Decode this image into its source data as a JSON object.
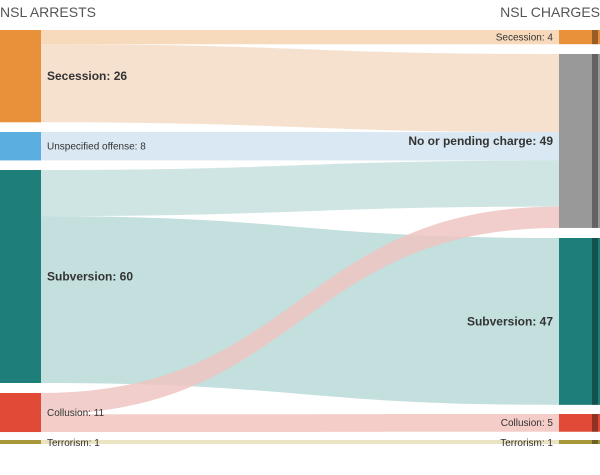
{
  "chart_data": {
    "type": "sankey",
    "header_left": "NSL ARRESTS",
    "header_right": "NSL CHARGES",
    "nodes_left": [
      {
        "id": "secession_a",
        "label": "Secession: 26",
        "value": 26,
        "color": "#e8903a"
      },
      {
        "id": "unspecified_a",
        "label": "Unspecified offense: 8",
        "value": 8,
        "color": "#5aaee0"
      },
      {
        "id": "subversion_a",
        "label": "Subversion: 60",
        "value": 60,
        "color": "#1e7f7a"
      },
      {
        "id": "collusion_a",
        "label": "Collusion: 11",
        "value": 11,
        "color": "#e04a36"
      },
      {
        "id": "terrorism_a",
        "label": "Terrorism: 1",
        "value": 1,
        "color": "#a8973a"
      }
    ],
    "nodes_right": [
      {
        "id": "secession_c",
        "label": "Secession: 4",
        "value": 4,
        "color": "#e8903a"
      },
      {
        "id": "none_c",
        "label": "No or pending charge: 49",
        "value": 49,
        "color": "#999999"
      },
      {
        "id": "subversion_c",
        "label": "Subversion: 47",
        "value": 47,
        "color": "#1e7f7a"
      },
      {
        "id": "collusion_c",
        "label": "Collusion: 5",
        "value": 5,
        "color": "#e04a36"
      },
      {
        "id": "terrorism_c",
        "label": "Terrorism: 1",
        "value": 1,
        "color": "#a8973a"
      }
    ],
    "links": [
      {
        "source": "secession_a",
        "target": "secession_c",
        "value": 4,
        "color": "#f6d3b0"
      },
      {
        "source": "secession_a",
        "target": "none_c",
        "value": 22,
        "color": "#f4dcc6"
      },
      {
        "source": "unspecified_a",
        "target": "none_c",
        "value": 8,
        "color": "#d2e4f0"
      },
      {
        "source": "subversion_a",
        "target": "none_c",
        "value": 13,
        "color": "#c5e0de"
      },
      {
        "source": "subversion_a",
        "target": "subversion_c",
        "value": 47,
        "color": "#b8d9d8"
      },
      {
        "source": "collusion_a",
        "target": "none_c",
        "value": 6,
        "color": "#efc6c2"
      },
      {
        "source": "collusion_a",
        "target": "collusion_c",
        "value": 5,
        "color": "#f2c4c0"
      },
      {
        "source": "terrorism_a",
        "target": "terrorism_c",
        "value": 1,
        "color": "#e6dfb8"
      }
    ]
  }
}
